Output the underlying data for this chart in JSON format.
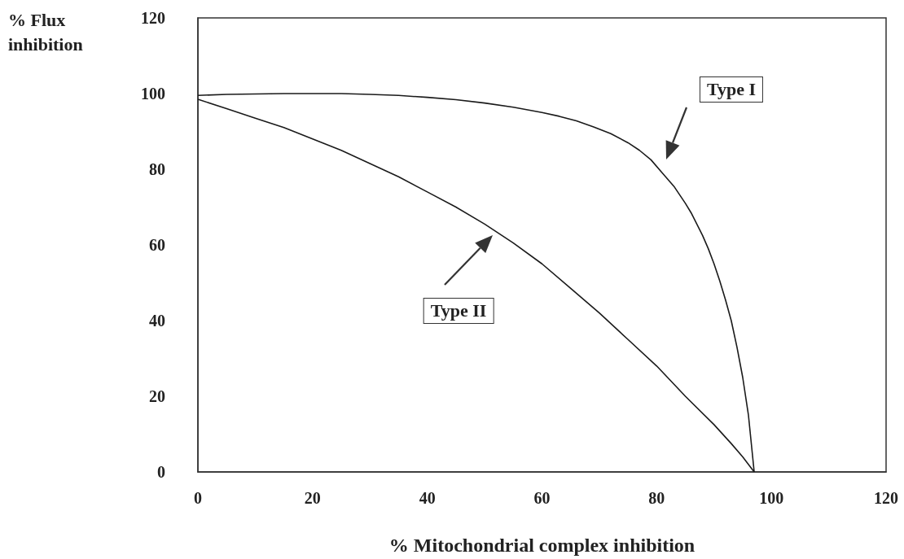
{
  "chart_data": {
    "type": "line",
    "xlabel": "% Mitochondrial complex inhibition",
    "ylabel": "% Flux\ninhibition",
    "xlim": [
      0,
      120
    ],
    "xticks": [
      0,
      20,
      40,
      60,
      80,
      100,
      120
    ],
    "ylim": [
      0,
      120
    ],
    "yticks": [
      0,
      20,
      40,
      60,
      80,
      100,
      120
    ],
    "grid": false,
    "marker": "none",
    "line_style": "solid",
    "series": [
      {
        "color": "#1a1a1a",
        "x": [
          0,
          5,
          10,
          15,
          20,
          25,
          30,
          35,
          40,
          45,
          50,
          55,
          60,
          63,
          66,
          69,
          72,
          75,
          77,
          79,
          81,
          83,
          85,
          86,
          87,
          88,
          89,
          90,
          91,
          92,
          93,
          94,
          95,
          96,
          97
        ],
        "values": [
          99.5,
          99.8,
          99.9,
          100,
          100,
          100,
          99.8,
          99.5,
          99,
          98.4,
          97.5,
          96.4,
          95,
          94,
          92.8,
          91.2,
          89.4,
          87,
          85,
          82.5,
          79,
          75.5,
          71,
          68.5,
          65.5,
          62.5,
          59,
          55,
          50.5,
          45.5,
          40,
          33,
          25,
          15,
          0
        ]
      },
      {
        "color": "#1a1a1a",
        "x": [
          0,
          5,
          10,
          15,
          20,
          25,
          30,
          35,
          40,
          45,
          50,
          55,
          60,
          65,
          70,
          75,
          80,
          85,
          90,
          93,
          95,
          97
        ],
        "values": [
          98.5,
          96,
          93.5,
          91,
          88,
          85,
          81.5,
          78,
          74,
          70,
          65.5,
          60.5,
          55,
          48.5,
          42,
          35,
          28,
          20,
          12.5,
          7.5,
          4,
          0
        ]
      }
    ],
    "annotations": [
      "Type I",
      "Type II"
    ]
  }
}
